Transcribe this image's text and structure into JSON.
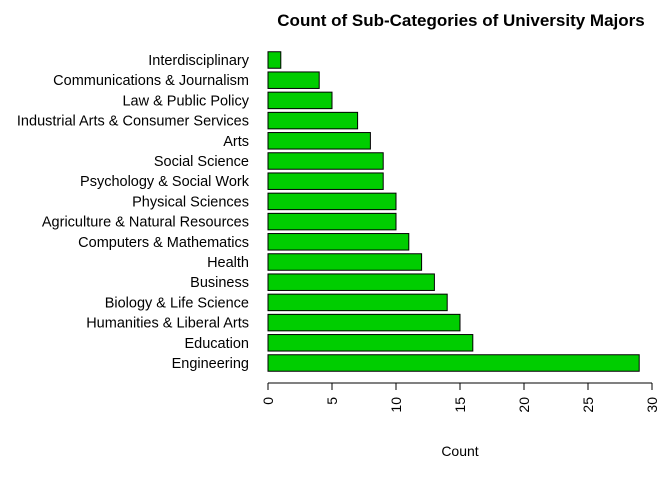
{
  "chart_data": {
    "type": "bar",
    "orientation": "horizontal",
    "title": "Count of Sub-Categories of University Majors",
    "xlabel": "Count",
    "ylabel": "",
    "xlim": [
      0,
      30
    ],
    "xticks": [
      0,
      5,
      10,
      15,
      20,
      25,
      30
    ],
    "grid": false,
    "legend": "none",
    "bar_color": "#00CD00",
    "categories": [
      "Engineering",
      "Education",
      "Humanities & Liberal Arts",
      "Biology & Life Science",
      "Business",
      "Health",
      "Computers & Mathematics",
      "Agriculture & Natural Resources",
      "Physical Sciences",
      "Psychology & Social Work",
      "Social Science",
      "Arts",
      "Industrial Arts & Consumer Services",
      "Law & Public Policy",
      "Communications & Journalism",
      "Interdisciplinary"
    ],
    "values": [
      29,
      16,
      15,
      14,
      13,
      12,
      11,
      10,
      10,
      9,
      9,
      8,
      7,
      5,
      4,
      1
    ]
  }
}
